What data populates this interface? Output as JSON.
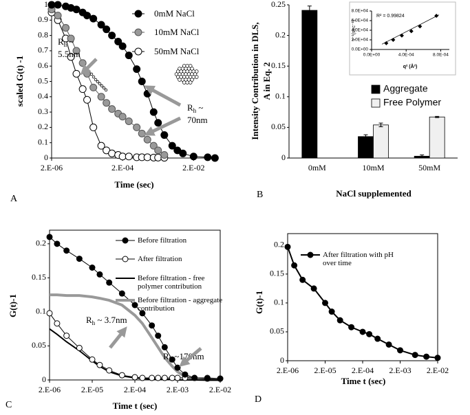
{
  "chart_data": [
    {
      "type": "line",
      "panel_label": "A",
      "xscale": "log",
      "xlabel": "Time (sec)",
      "ylabel": "scaled G(t) -1",
      "x": [
        2e-06,
        3e-06,
        5e-06,
        7e-06,
        1e-05,
        1.5e-05,
        2e-05,
        3e-05,
        5e-05,
        7e-05,
        0.0001,
        0.00015,
        0.0002,
        0.0003,
        0.0005,
        0.0007,
        0.001,
        0.0015,
        0.002,
        0.003,
        0.005,
        0.007,
        0.01,
        0.02,
        0.05,
        0.08
      ],
      "xlim": [
        2e-06,
        0.09
      ],
      "xticks": [
        {
          "value": 2e-06,
          "label": "2.E-06"
        },
        {
          "value": 0.0002,
          "label": "2.E-04"
        },
        {
          "value": 0.02,
          "label": "2.E-02"
        }
      ],
      "ylim": [
        0,
        1
      ],
      "yticks": [
        0,
        0.1,
        0.2,
        0.3,
        0.4,
        0.5,
        0.6,
        0.7,
        0.8,
        0.9,
        1
      ],
      "series": [
        {
          "name": "0mM NaCl",
          "color": "#000000",
          "marker": "circle",
          "marker_fill": "#000000",
          "values": [
            1,
            1,
            0.99,
            0.98,
            0.97,
            0.95,
            0.93,
            0.91,
            0.87,
            0.84,
            0.8,
            0.76,
            0.73,
            0.67,
            0.58,
            0.5,
            0.42,
            0.3,
            0.23,
            0.15,
            0.08,
            0.05,
            0.03,
            0.01,
            0.005,
            0
          ]
        },
        {
          "name": "10mM NaCl",
          "color": "#555555",
          "marker": "circle",
          "marker_fill": "#999999",
          "values": [
            0.97,
            0.93,
            0.85,
            0.78,
            0.7,
            0.62,
            0.55,
            0.46,
            0.4,
            0.36,
            0.32,
            0.29,
            0.27,
            0.24,
            0.2,
            0.16,
            0.12,
            0.08,
            0.05,
            0.02,
            null,
            null,
            null,
            null,
            null,
            null
          ]
        },
        {
          "name": "50mM NaCl",
          "color": "#000000",
          "marker": "circle",
          "marker_fill": "#ffffff",
          "values": [
            0.95,
            0.9,
            0.78,
            0.66,
            0.55,
            0.45,
            0.38,
            0.2,
            0.08,
            0.05,
            0.03,
            0.02,
            0.01,
            0.01,
            0.005,
            0.005,
            0.005,
            0.003,
            0.003,
            0.002,
            null,
            null,
            null,
            null,
            null,
            null
          ]
        }
      ],
      "annotations": [
        {
          "symbol": "R",
          "subscript": "h",
          "text": [
            " ~",
            "5.5nm"
          ]
        },
        {
          "symbol": "R",
          "subscript": "h",
          "text": [
            " ~",
            "70nm"
          ]
        }
      ]
    },
    {
      "type": "bar",
      "panel_label": "B",
      "xlabel": "NaCl supplemented",
      "ylabel": [
        "Intensity Contribution in DLS,",
        "A in Eq. 2"
      ],
      "categories": [
        "0mM",
        "10mM",
        "50mM"
      ],
      "ylim": [
        0,
        0.25
      ],
      "yticks": [
        0,
        0.05,
        0.1,
        0.15,
        0.2,
        0.25
      ],
      "series": [
        {
          "name": "Aggregate",
          "color": "#000000",
          "values": [
            0.241,
            0.035,
            0.003
          ],
          "errors": [
            0.007,
            0.003,
            0.002
          ]
        },
        {
          "name": "Free Polymer",
          "color": "#f0f0f0",
          "values": [
            null,
            0.054,
            0.067
          ],
          "errors": [
            null,
            0.003,
            0.001
          ]
        }
      ],
      "inset": {
        "type": "scatter",
        "xlabel": "q² (Å²)",
        "ylabel": "τ⁻¹(sec⁻¹)",
        "annotation": "R² = 0.99824",
        "color": "#000000",
        "x": [
          0.00017,
          0.00025,
          0.00035,
          0.00046,
          0.00056,
          0.00075
        ],
        "values": [
          13000,
          20000,
          29000,
          38000,
          48000,
          70000
        ],
        "trendline": {
          "x": [
            0.00012,
            0.00078
          ],
          "y": [
            11000,
            72000
          ]
        },
        "xlim": [
          0,
          0.0009
        ],
        "ylim": [
          0,
          80000
        ],
        "xticks": [
          {
            "value": 0,
            "label": "0.0E+00"
          },
          {
            "value": 0.0004,
            "label": "4.0E-04"
          },
          {
            "value": 0.0008,
            "label": "8.0E-04"
          }
        ],
        "yticks": [
          {
            "value": 0,
            "label": "0.0E+00"
          },
          {
            "value": 20000,
            "label": "2.0E+04"
          },
          {
            "value": 40000,
            "label": "4.0E+04"
          },
          {
            "value": 60000,
            "label": "6.0E+04"
          },
          {
            "value": 80000,
            "label": "8.0E+04"
          }
        ]
      }
    },
    {
      "type": "line",
      "panel_label": "C",
      "xscale": "log",
      "xlabel": "Time t (sec)",
      "ylabel": "G(t)-1",
      "x": [
        2e-06,
        3e-06,
        5e-06,
        1e-05,
        2e-05,
        3e-05,
        5e-05,
        0.0001,
        0.0002,
        0.0003,
        0.0005,
        0.0007,
        0.001,
        0.0015,
        0.002,
        0.003,
        0.005,
        0.01,
        0.02
      ],
      "xlim": [
        2e-06,
        0.02
      ],
      "xticks": [
        {
          "value": 2e-06,
          "label": "2.E-06"
        },
        {
          "value": 2e-05,
          "label": "2.E-05"
        },
        {
          "value": 0.0002,
          "label": "2.E-04"
        },
        {
          "value": 0.002,
          "label": "2.E-03"
        },
        {
          "value": 0.02,
          "label": "2.E-02"
        }
      ],
      "ylim": [
        0,
        0.22
      ],
      "yticks": [
        0,
        0.05,
        0.1,
        0.15,
        0.2
      ],
      "series": [
        {
          "name": "Before filtration",
          "color": "#000000",
          "marker": "circle",
          "marker_fill": "#000000",
          "line_width": 1,
          "values": [
            0.21,
            0.2,
            0.19,
            0.178,
            0.165,
            0.155,
            0.143,
            0.127,
            0.11,
            0.098,
            0.08,
            0.065,
            0.048,
            0.03,
            0.018,
            0.008,
            0.003,
            0.002,
            0.002
          ]
        },
        {
          "name": "After filtration",
          "color": "#000000",
          "marker": "circle",
          "marker_fill": "#ffffff",
          "line_width": 1,
          "values": [
            0.098,
            0.083,
            0.065,
            0.047,
            0.03,
            0.022,
            0.014,
            0.007,
            0.004,
            0.003,
            0.003,
            0.003,
            0.003,
            0.003,
            0.003,
            0.003,
            0.003,
            0.003,
            0.002
          ]
        },
        {
          "name": "Before filtration - free polymer contribution",
          "color": "#000000",
          "line_width": 2,
          "values": [
            0.075,
            0.067,
            0.056,
            0.043,
            0.028,
            0.02,
            0.012,
            0.006,
            0.003,
            0.002,
            0.001,
            0.001,
            0.001,
            0.001,
            0,
            0,
            0,
            0,
            0
          ]
        },
        {
          "name": "Before filtration - aggregate contribution",
          "color": "#999999",
          "line_width": 4,
          "values": [
            0.125,
            0.125,
            0.124,
            0.124,
            0.122,
            0.12,
            0.117,
            0.11,
            0.095,
            0.083,
            0.062,
            0.048,
            0.033,
            0.02,
            0.012,
            0.005,
            0.001,
            0,
            0
          ]
        }
      ],
      "annotations": [
        {
          "symbol": "R",
          "subscript": "h",
          "text": [
            " ~ 3.7nm"
          ]
        },
        {
          "symbol": "R",
          "subscript": "h",
          "text": [
            " ~170nm"
          ]
        }
      ]
    },
    {
      "type": "line",
      "panel_label": "D",
      "xscale": "log",
      "xlabel": "Time t (sec)",
      "ylabel": "G(t)-1",
      "x": [
        2e-06,
        3e-06,
        5e-06,
        1e-05,
        2e-05,
        3e-05,
        5e-05,
        0.0001,
        0.0002,
        0.0003,
        0.0005,
        0.001,
        0.002,
        0.005,
        0.01,
        0.02
      ],
      "xlim": [
        2e-06,
        0.02
      ],
      "xticks": [
        {
          "value": 2e-06,
          "label": "2.E-06"
        },
        {
          "value": 2e-05,
          "label": "2.E-05"
        },
        {
          "value": 0.0002,
          "label": "2.E-04"
        },
        {
          "value": 0.002,
          "label": "2.E-03"
        },
        {
          "value": 0.02,
          "label": "2.E-02"
        }
      ],
      "ylim": [
        0,
        0.22
      ],
      "yticks": [
        0,
        0.05,
        0.1,
        0.15,
        0.2
      ],
      "series": [
        {
          "name": "After filtration with pH over time",
          "color": "#000000",
          "marker": "circle",
          "marker_fill": "#000000",
          "line_width": 2,
          "values": [
            0.197,
            0.165,
            0.14,
            0.125,
            0.1,
            0.085,
            0.07,
            0.058,
            0.05,
            0.046,
            0.038,
            0.028,
            0.018,
            0.01,
            0.007,
            0.005
          ]
        }
      ]
    }
  ]
}
